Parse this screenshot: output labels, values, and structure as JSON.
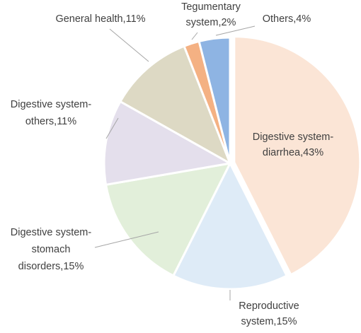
{
  "chart_data": {
    "type": "pie",
    "slices": [
      {
        "label": "Digestive system-diarrhea",
        "value": 43,
        "text_lines": [
          "Digestive system-",
          "diarrhea,43%"
        ],
        "color": "#fbe5d6"
      },
      {
        "label": "Reproductive system",
        "value": 15,
        "text_lines": [
          "Reproductive",
          "system,15%"
        ],
        "color": "#deebf7"
      },
      {
        "label": "Digestive system-stomach disorders",
        "value": 15,
        "text_lines": [
          "Digestive system-",
          "stomach",
          "disorders,15%"
        ],
        "color": "#e2efda"
      },
      {
        "label": "Digestive system-others",
        "value": 11,
        "text_lines": [
          "Digestive system-",
          "others,11%"
        ],
        "color": "#e4dfec"
      },
      {
        "label": "General health",
        "value": 11,
        "text_lines": [
          "General health,11%"
        ],
        "color": "#ddd9c4"
      },
      {
        "label": "Tegumentary system",
        "value": 2,
        "text_lines": [
          "Tegumentary",
          "system,2%"
        ],
        "color": "#f4b183"
      },
      {
        "label": "Others",
        "value": 4,
        "text_lines": [
          "Others,4%"
        ],
        "color": "#8eb4e3"
      }
    ],
    "start": "12 o'clock",
    "direction": "clockwise",
    "legend": "none"
  }
}
